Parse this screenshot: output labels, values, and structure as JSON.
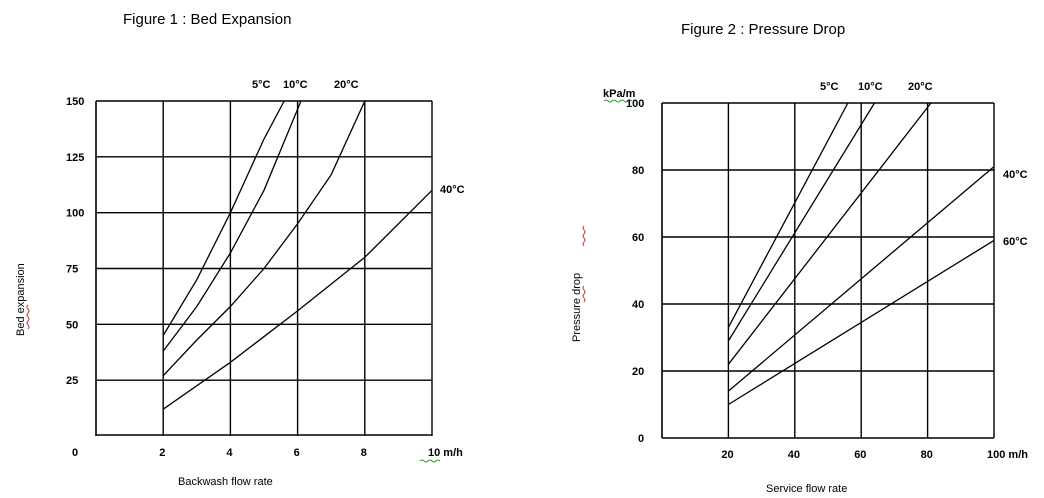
{
  "chart_data": [
    {
      "type": "line",
      "title": "Figure 1 : Bed Expansion",
      "xlabel": "Backwash  flow rate",
      "ylabel": "Bed expansion",
      "xlim": [
        0,
        10
      ],
      "ylim": [
        0,
        150
      ],
      "x_ticks": [
        "0",
        "2",
        "4",
        "6",
        "8",
        "10  m/h"
      ],
      "y_ticks": [
        "25",
        "50",
        "75",
        "100",
        "125",
        "150"
      ],
      "grid": true,
      "series": [
        {
          "name": "5°C",
          "x": [
            2,
            3,
            4,
            5,
            5.6
          ],
          "y": [
            45,
            70,
            100,
            133,
            150
          ]
        },
        {
          "name": "10°C",
          "x": [
            2,
            3,
            4,
            5,
            6.1
          ],
          "y": [
            38,
            58,
            82,
            110,
            150
          ]
        },
        {
          "name": "20°C",
          "x": [
            2,
            3,
            4,
            5,
            6,
            7,
            8
          ],
          "y": [
            27,
            43,
            58,
            75,
            95,
            117,
            150
          ]
        },
        {
          "name": "40°C",
          "x": [
            2,
            4,
            6,
            8,
            10
          ],
          "y": [
            12,
            33,
            56,
            80,
            110
          ]
        }
      ]
    },
    {
      "type": "line",
      "title": "Figure 2 : Pressure Drop",
      "xlabel": "Service  flow rate",
      "ylabel": "Pressure  drop",
      "yunit": "kPa/m",
      "xlim": [
        0,
        100
      ],
      "ylim": [
        0,
        100
      ],
      "x_ticks": [
        "20",
        "40",
        "60",
        "80",
        "100 m/h"
      ],
      "y_ticks": [
        "0",
        "20",
        "40",
        "60",
        "80",
        "100"
      ],
      "grid": true,
      "series": [
        {
          "name": "5°C",
          "x": [
            20,
            56
          ],
          "y": [
            33,
            100
          ]
        },
        {
          "name": "10°C",
          "x": [
            20,
            64
          ],
          "y": [
            29,
            100
          ]
        },
        {
          "name": "20°C",
          "x": [
            20,
            81
          ],
          "y": [
            22,
            100
          ]
        },
        {
          "name": "40°C",
          "x": [
            20,
            100
          ],
          "y": [
            14,
            81
          ]
        },
        {
          "name": "60°C",
          "x": [
            20,
            100
          ],
          "y": [
            10,
            59
          ]
        }
      ]
    }
  ]
}
